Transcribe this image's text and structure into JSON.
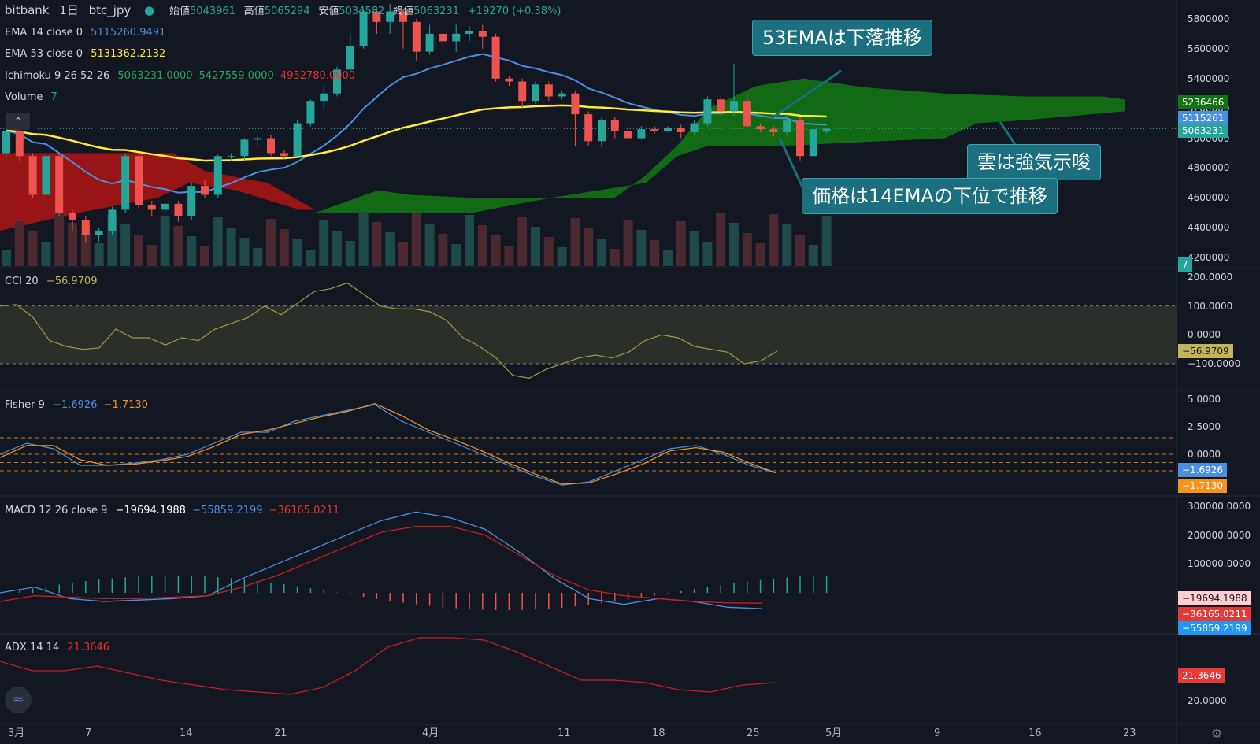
{
  "header": {
    "exchange": "bitbank",
    "interval": "1日",
    "symbol": "btc_jpy",
    "open_label": "始値",
    "open_value": "5043961",
    "high_label": "高値",
    "high_value": "5065294",
    "low_label": "安値",
    "low_value": "5034582",
    "close_label": "終値",
    "close_value": "5063231",
    "change": "+19270 (+0.38%)"
  },
  "indicators": {
    "ema14": {
      "label": "EMA 14 close 0",
      "value": "5115260.9491",
      "color": "#4a90e2"
    },
    "ema53": {
      "label": "EMA 53 close 0",
      "value": "5131362.2132",
      "color": "#ffeb3b"
    },
    "ichimoku": {
      "label": "Ichimoku 9 26 52 26",
      "v1": "5063231.0000",
      "v2": "5427559.0000",
      "v3": "4952780.0000"
    },
    "volume": {
      "label": "Volume",
      "value": "7"
    },
    "cci": {
      "label": "CCI 20",
      "value": "−56.9709"
    },
    "fisher": {
      "label": "Fisher 9",
      "v1": "−1.6926",
      "v2": "−1.7130"
    },
    "macd": {
      "label": "MACD 12 26 close 9",
      "v1": "−19694.1988",
      "v2": "−55859.2199",
      "v3": "−36165.0211"
    },
    "adx": {
      "label": "ADX 14 14",
      "value": "21.3646"
    }
  },
  "callouts": {
    "c1": "53EMAは下落推移",
    "c2": "雲は強気示唆",
    "c3": "価格は14EMAの下位で推移"
  },
  "price_axis": [
    "5800000",
    "5600000",
    "5400000",
    "5200000",
    "5000000",
    "4800000",
    "4600000",
    "4400000",
    "4200000"
  ],
  "price_tags": {
    "cloud_top": "5236466",
    "ema14": "5115261",
    "close": "5063231",
    "volume": "7"
  },
  "cci_axis": [
    "200.0000",
    "100.0000",
    "0.0000",
    "−100.0000"
  ],
  "cci_tag": "−56.9709",
  "fisher_axis": [
    "5.0000",
    "2.5000",
    "0.0000"
  ],
  "fisher_tags": [
    "−1.6926",
    "−1.7130"
  ],
  "macd_axis": [
    "300000.0000",
    "200000.0000",
    "100000.0000"
  ],
  "macd_tags": [
    "−19694.1988",
    "−36165.0211",
    "−55859.2199"
  ],
  "adx_axis": [
    "20.0000"
  ],
  "adx_tag": "21.3646",
  "date_axis": [
    "3月",
    "7",
    "14",
    "21",
    "4月",
    "11",
    "18",
    "25",
    "5月",
    "9",
    "16",
    "23"
  ],
  "colors": {
    "up": "#26a69a",
    "down": "#ef5350",
    "cloud_bull": "#137313",
    "cloud_bear": "#a81414",
    "bg": "#131722"
  },
  "chart_data": {
    "type": "candlestick",
    "candles": [
      [
        4900000,
        5050000,
        4880000,
        5080000
      ],
      [
        5050000,
        4880000,
        4850000,
        5080000
      ],
      [
        4880000,
        4620000,
        4600000,
        4900000
      ],
      [
        4620000,
        4880000,
        4450000,
        4900000
      ],
      [
        4880000,
        4500000,
        4480000,
        4900000
      ],
      [
        4500000,
        4450000,
        4380000,
        4520000
      ],
      [
        4450000,
        4350000,
        4300000,
        4480000
      ],
      [
        4350000,
        4380000,
        4300000,
        4400000
      ],
      [
        4380000,
        4520000,
        4350000,
        4540000
      ],
      [
        4520000,
        4880000,
        4500000,
        4900000
      ],
      [
        4880000,
        4550000,
        4530000,
        4890000
      ],
      [
        4550000,
        4520000,
        4480000,
        4580000
      ],
      [
        4520000,
        4560000,
        4500000,
        4580000
      ],
      [
        4560000,
        4480000,
        4440000,
        4580000
      ],
      [
        4480000,
        4680000,
        4450000,
        4700000
      ],
      [
        4680000,
        4620000,
        4600000,
        4720000
      ],
      [
        4620000,
        4880000,
        4600000,
        4890000
      ],
      [
        4880000,
        4880000,
        4850000,
        4900000
      ],
      [
        4880000,
        4990000,
        4850000,
        5000000
      ],
      [
        4990000,
        5000000,
        4950000,
        5020000
      ],
      [
        5000000,
        4900000,
        4880000,
        5020000
      ],
      [
        4900000,
        4880000,
        4860000,
        4920000
      ],
      [
        4880000,
        5100000,
        4870000,
        5120000
      ],
      [
        5100000,
        5250000,
        5080000,
        5260000
      ],
      [
        5250000,
        5300000,
        5200000,
        5350000
      ],
      [
        5300000,
        5460000,
        5280000,
        5480000
      ],
      [
        5460000,
        5620000,
        5440000,
        5700000
      ],
      [
        5620000,
        5850000,
        5600000,
        5860000
      ],
      [
        5850000,
        5780000,
        5700000,
        5880000
      ],
      [
        5780000,
        5850000,
        5700000,
        5900000
      ],
      [
        5850000,
        5780000,
        5600000,
        5860000
      ],
      [
        5780000,
        5580000,
        5520000,
        5800000
      ],
      [
        5580000,
        5700000,
        5560000,
        5760000
      ],
      [
        5700000,
        5650000,
        5600000,
        5720000
      ],
      [
        5650000,
        5700000,
        5580000,
        5760000
      ],
      [
        5700000,
        5720000,
        5650000,
        5750000
      ],
      [
        5720000,
        5680000,
        5600000,
        5760000
      ],
      [
        5680000,
        5400000,
        5380000,
        5700000
      ],
      [
        5400000,
        5380000,
        5350000,
        5420000
      ],
      [
        5380000,
        5250000,
        5200000,
        5400000
      ],
      [
        5250000,
        5360000,
        5230000,
        5380000
      ],
      [
        5360000,
        5280000,
        5250000,
        5380000
      ],
      [
        5280000,
        5300000,
        5260000,
        5320000
      ],
      [
        5300000,
        5160000,
        4950000,
        5320000
      ],
      [
        5160000,
        4980000,
        4950000,
        5180000
      ],
      [
        4980000,
        5120000,
        4940000,
        5140000
      ],
      [
        5120000,
        5050000,
        5000000,
        5140000
      ],
      [
        5050000,
        5000000,
        4980000,
        5080000
      ],
      [
        5000000,
        5060000,
        4990000,
        5080000
      ],
      [
        5060000,
        5050000,
        5030000,
        5080000
      ],
      [
        5050000,
        5070000,
        5040000,
        5080000
      ],
      [
        5070000,
        5040000,
        5000000,
        5090000
      ],
      [
        5040000,
        5100000,
        5020000,
        5120000
      ],
      [
        5100000,
        5260000,
        5080000,
        5280000
      ],
      [
        5260000,
        5180000,
        5150000,
        5280000
      ],
      [
        5180000,
        5250000,
        5150000,
        5500000
      ],
      [
        5250000,
        5080000,
        5060000,
        5300000
      ],
      [
        5080000,
        5060000,
        5040000,
        5100000
      ],
      [
        5060000,
        5040000,
        5010000,
        5080000
      ],
      [
        5040000,
        5120000,
        5020000,
        5160000
      ],
      [
        5120000,
        4880000,
        4850000,
        5140000
      ],
      [
        4880000,
        5060000,
        4870000,
        5080000
      ],
      [
        5043961,
        5063231,
        5034582,
        5065294
      ]
    ]
  }
}
